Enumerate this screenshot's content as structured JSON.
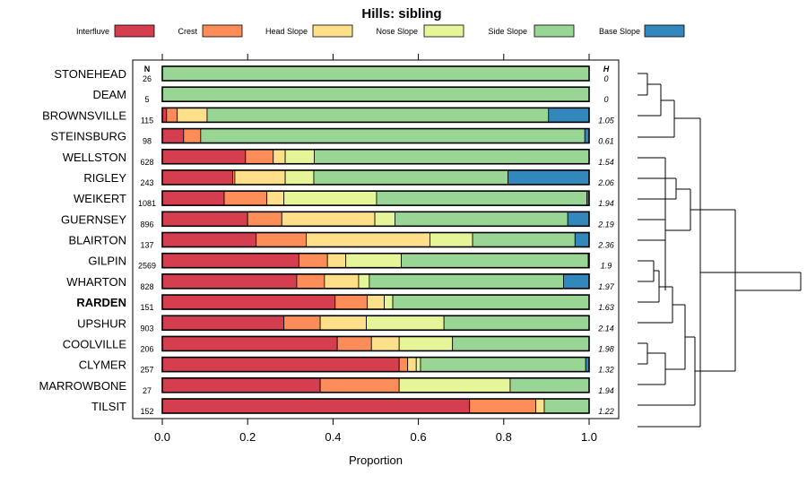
{
  "chart_data": {
    "type": "bar",
    "orientation": "horizontal",
    "stacked": true,
    "title": "Hills: sibling",
    "xlabel": "Proportion",
    "xlim": [
      0,
      1
    ],
    "xticks": [
      "0.0",
      "0.2",
      "0.4",
      "0.6",
      "0.8",
      "1.0"
    ],
    "n_header": "N",
    "h_header": "H",
    "highlight": "RARDEN",
    "legend": [
      {
        "name": "Interfluve",
        "color": "#d53e4f"
      },
      {
        "name": "Crest",
        "color": "#fc8d59"
      },
      {
        "name": "Head Slope",
        "color": "#fee08b"
      },
      {
        "name": "Nose Slope",
        "color": "#e6f598"
      },
      {
        "name": "Side Slope",
        "color": "#99d594"
      },
      {
        "name": "Base Slope",
        "color": "#3288bd"
      }
    ],
    "rows": [
      {
        "name": "STONEHEAD",
        "n": "26",
        "h": "0",
        "values": [
          0,
          0,
          0,
          0,
          1.0,
          0
        ]
      },
      {
        "name": "DEAM",
        "n": "5",
        "h": "0",
        "values": [
          0,
          0,
          0,
          0,
          1.0,
          0
        ]
      },
      {
        "name": "BROWNSVILLE",
        "n": "115",
        "h": "1.05",
        "values": [
          0.01,
          0.025,
          0.07,
          0,
          0.8,
          0.095
        ]
      },
      {
        "name": "STEINSBURG",
        "n": "98",
        "h": "0.61",
        "values": [
          0.05,
          0.04,
          0,
          0,
          0.9,
          0.01
        ]
      },
      {
        "name": "WELLSTON",
        "n": "628",
        "h": "1.54",
        "values": [
          0.195,
          0.065,
          0.028,
          0.068,
          0.644,
          0
        ]
      },
      {
        "name": "RIGLEY",
        "n": "243",
        "h": "2.06",
        "values": [
          0.165,
          0.005,
          0.118,
          0.067,
          0.455,
          0.19
        ]
      },
      {
        "name": "WEIKERT",
        "n": "1081",
        "h": "1.94",
        "values": [
          0.145,
          0.1,
          0.04,
          0.217,
          0.493,
          0.005
        ]
      },
      {
        "name": "GUERNSEY",
        "n": "896",
        "h": "2.19",
        "values": [
          0.2,
          0.08,
          0.218,
          0.047,
          0.405,
          0.05
        ]
      },
      {
        "name": "BLAIRTON",
        "n": "137",
        "h": "2.36",
        "values": [
          0.22,
          0.117,
          0.29,
          0.1,
          0.24,
          0.033
        ]
      },
      {
        "name": "GILPIN",
        "n": "2569",
        "h": "1.9",
        "values": [
          0.32,
          0.067,
          0.043,
          0.13,
          0.438,
          0.002
        ]
      },
      {
        "name": "WHARTON",
        "n": "828",
        "h": "1.97",
        "values": [
          0.315,
          0.065,
          0.08,
          0.025,
          0.455,
          0.06
        ]
      },
      {
        "name": "RARDEN",
        "n": "151",
        "h": "1.63",
        "values": [
          0.405,
          0.075,
          0.04,
          0.02,
          0.46,
          0
        ]
      },
      {
        "name": "UPSHUR",
        "n": "903",
        "h": "2.14",
        "values": [
          0.285,
          0.085,
          0.108,
          0.182,
          0.34,
          0
        ]
      },
      {
        "name": "COOLVILLE",
        "n": "206",
        "h": "1.98",
        "values": [
          0.41,
          0.08,
          0.065,
          0.125,
          0.32,
          0
        ]
      },
      {
        "name": "CLYMER",
        "n": "257",
        "h": "1.32",
        "values": [
          0.555,
          0.02,
          0.02,
          0.01,
          0.387,
          0.008
        ]
      },
      {
        "name": "MARROWBONE",
        "n": "27",
        "h": "1.94",
        "values": [
          0.37,
          0.185,
          0,
          0.26,
          0.185,
          0
        ]
      },
      {
        "name": "TILSIT",
        "n": "152",
        "h": "1.22",
        "values": [
          0.72,
          0.155,
          0.02,
          0,
          0.105,
          0
        ]
      }
    ]
  }
}
